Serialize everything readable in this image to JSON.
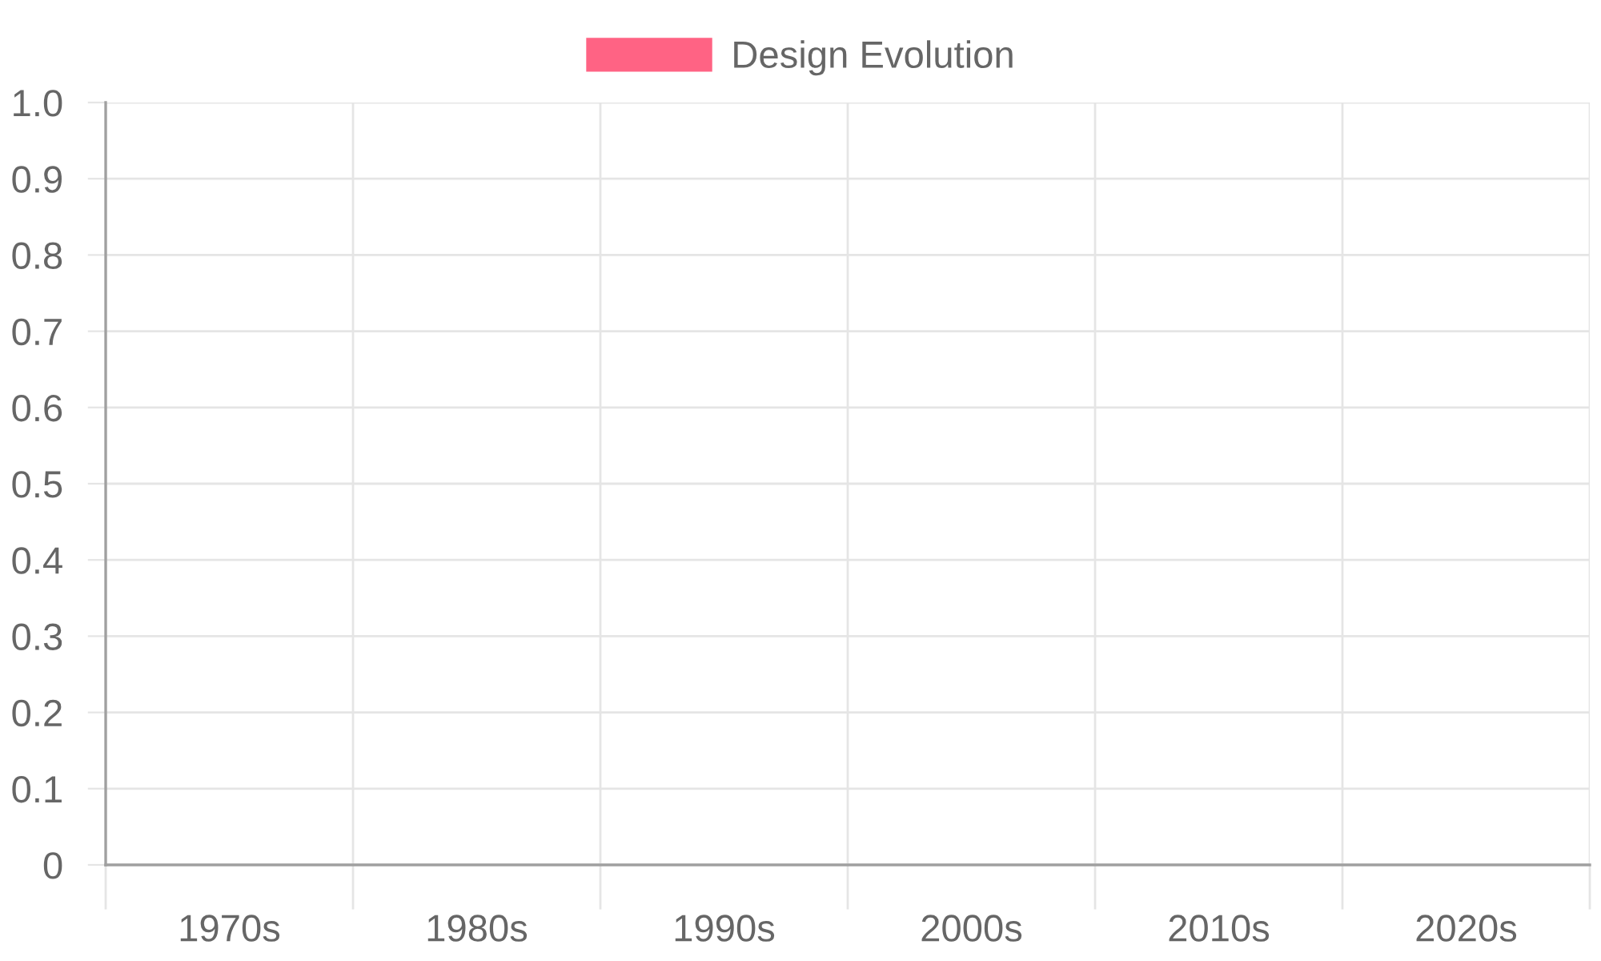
{
  "chart_data": {
    "type": "bar",
    "categories": [
      "1970s",
      "1980s",
      "1990s",
      "2000s",
      "2010s",
      "2020s"
    ],
    "series": [
      {
        "name": "Design Evolution",
        "color": "#ff6384",
        "values": [
          null,
          null,
          null,
          null,
          null,
          null
        ]
      }
    ],
    "ylim": [
      0,
      1
    ],
    "yticks": [
      0,
      0.1,
      0.2,
      0.3,
      0.4,
      0.5,
      0.6,
      0.7,
      0.8,
      0.9,
      {
        "value": 1,
        "label": "1.0"
      }
    ],
    "grid": true,
    "legend": "top"
  }
}
